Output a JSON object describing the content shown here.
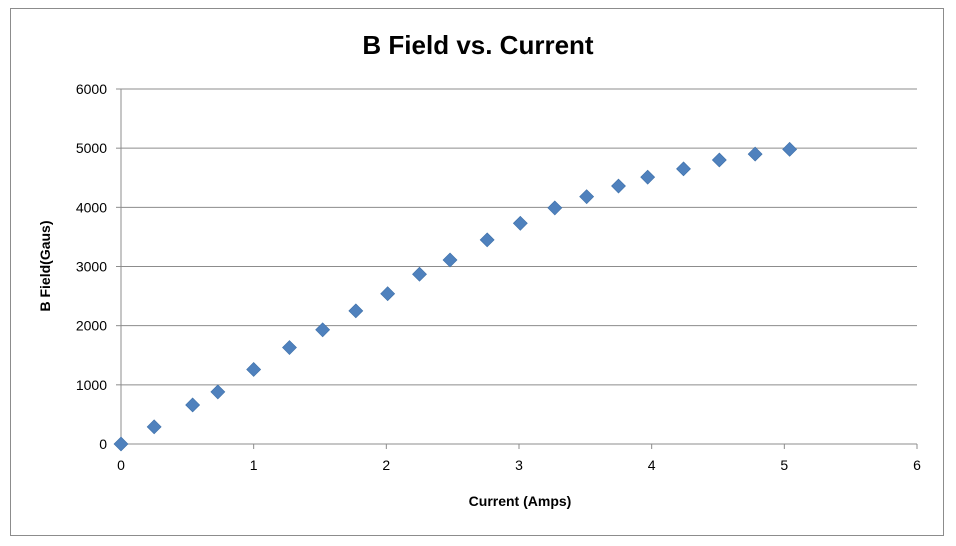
{
  "chart_data": {
    "type": "scatter",
    "title": "B Field vs. Current",
    "xlabel": "Current (Amps)",
    "ylabel": "B Field(Gaus)",
    "xlim": [
      0,
      6
    ],
    "ylim": [
      0,
      6000
    ],
    "x_ticks": [
      "0",
      "1",
      "2",
      "3",
      "4",
      "5",
      "6"
    ],
    "y_ticks": [
      "0",
      "1000",
      "2000",
      "3000",
      "4000",
      "5000",
      "6000"
    ],
    "grid": "horizontal",
    "legend": "none",
    "marker": "diamond",
    "color": "#4f81bd",
    "points": [
      {
        "x": 0,
        "y": 0
      },
      {
        "x": 0.25,
        "y": 290
      },
      {
        "x": 0.54,
        "y": 660
      },
      {
        "x": 0.73,
        "y": 880
      },
      {
        "x": 1.0,
        "y": 1260
      },
      {
        "x": 1.27,
        "y": 1630
      },
      {
        "x": 1.52,
        "y": 1930
      },
      {
        "x": 1.77,
        "y": 2250
      },
      {
        "x": 2.01,
        "y": 2540
      },
      {
        "x": 2.25,
        "y": 2870
      },
      {
        "x": 2.48,
        "y": 3110
      },
      {
        "x": 2.76,
        "y": 3450
      },
      {
        "x": 3.01,
        "y": 3730
      },
      {
        "x": 3.27,
        "y": 3990
      },
      {
        "x": 3.51,
        "y": 4180
      },
      {
        "x": 3.75,
        "y": 4360
      },
      {
        "x": 3.97,
        "y": 4510
      },
      {
        "x": 4.24,
        "y": 4650
      },
      {
        "x": 4.51,
        "y": 4800
      },
      {
        "x": 4.78,
        "y": 4900
      },
      {
        "x": 5.04,
        "y": 4980
      }
    ]
  }
}
